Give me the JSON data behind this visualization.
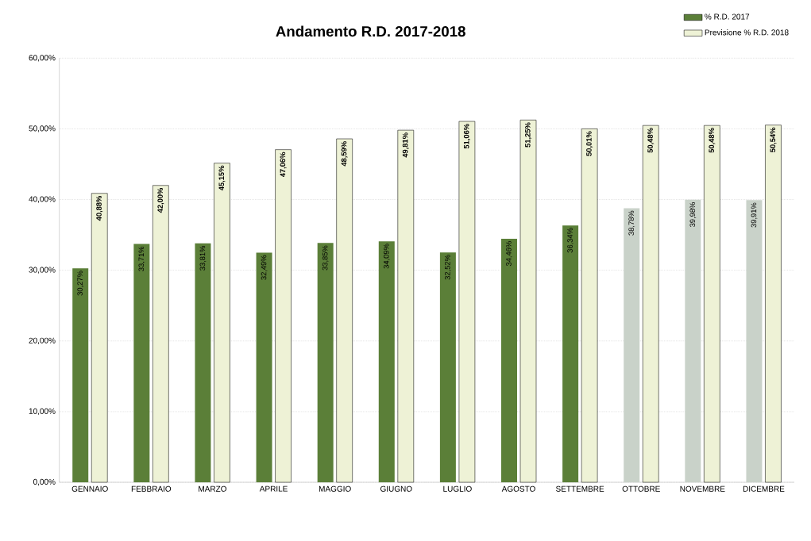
{
  "chart_data": {
    "type": "bar",
    "title": "Andamento R.D. 2017-2018",
    "categories": [
      "GENNAIO",
      "FEBBRAIO",
      "MARZO",
      "APRILE",
      "MAGGIO",
      "GIUGNO",
      "LUGLIO",
      "AGOSTO",
      "SETTEMBRE",
      "OTTOBRE",
      "NOVEMBRE",
      "DICEMBRE"
    ],
    "series": [
      {
        "name": "% R.D. 2017",
        "color": "#5b7f38",
        "colors": [
          "#5b7f38",
          "#5b7f38",
          "#5b7f38",
          "#5b7f38",
          "#5b7f38",
          "#5b7f38",
          "#5b7f38",
          "#5b7f38",
          "#5b7f38",
          "#c9d2c9",
          "#c9d2c9",
          "#c9d2c9"
        ],
        "values": [
          30.27,
          33.71,
          33.81,
          32.49,
          33.85,
          34.09,
          32.52,
          34.46,
          36.34,
          38.78,
          39.98,
          39.91
        ],
        "value_labels": [
          "30,27%",
          "33,71%",
          "33,81%",
          "32,49%",
          "33,85%",
          "34,09%",
          "32,52%",
          "34,46%",
          "36,34%",
          "38,78%",
          "39,98%",
          "39,91%"
        ]
      },
      {
        "name": "Previsione % R.D. 2018",
        "color": "#eef2d6",
        "values": [
          40.88,
          42.0,
          45.15,
          47.06,
          48.59,
          49.81,
          51.06,
          51.25,
          50.01,
          50.48,
          50.48,
          50.54
        ],
        "value_labels": [
          "40,88%",
          "42,00%",
          "45,15%",
          "47,06%",
          "48,59%",
          "49,81%",
          "51,06%",
          "51,25%",
          "50,01%",
          "50,48%",
          "50,48%",
          "50,54%"
        ]
      }
    ],
    "ylim": [
      0,
      60
    ],
    "yticks": [
      {
        "value": 0,
        "label": "0,00%"
      },
      {
        "value": 10,
        "label": "10,00%"
      },
      {
        "value": 20,
        "label": "20,00%"
      },
      {
        "value": 30,
        "label": "30,00%"
      },
      {
        "value": 40,
        "label": "40,00%"
      },
      {
        "value": 50,
        "label": "50,00%"
      },
      {
        "value": 60,
        "label": "60,00%"
      }
    ],
    "grid": "y",
    "legend": "top right"
  }
}
